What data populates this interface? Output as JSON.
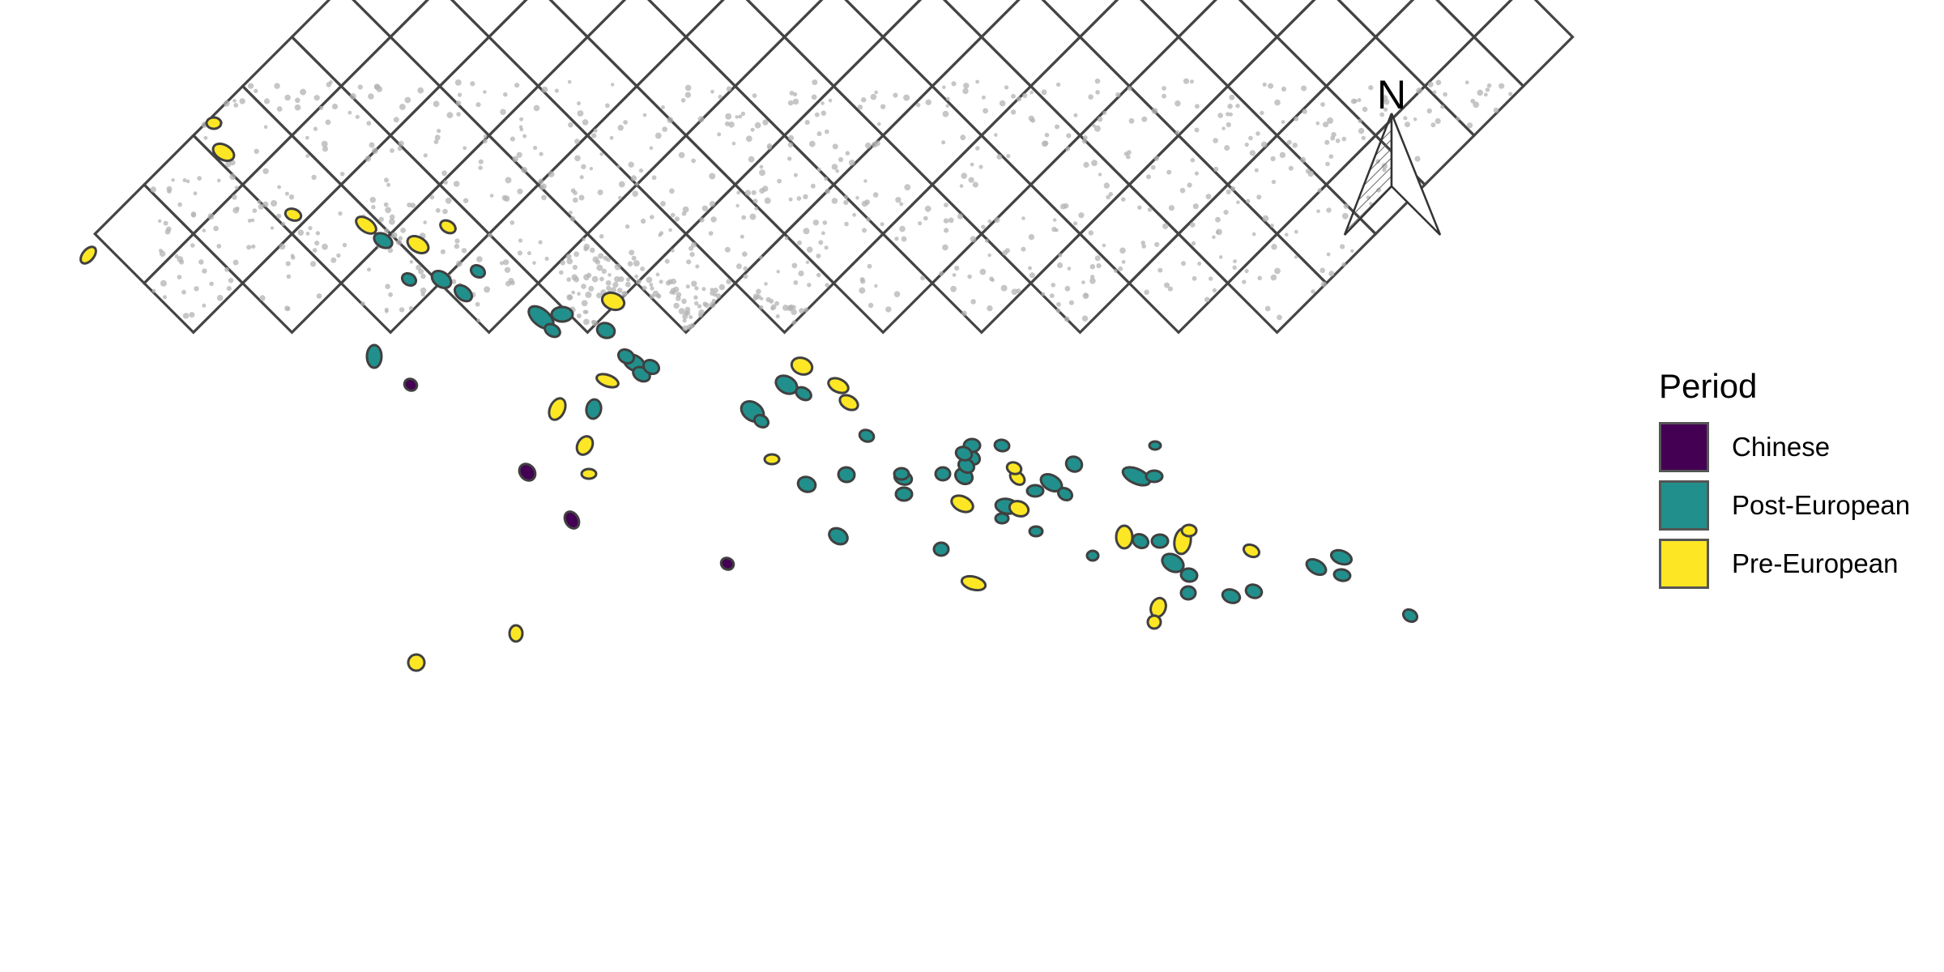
{
  "legend": {
    "title": "Period",
    "items": [
      {
        "label": "Chinese",
        "color": "#440154"
      },
      {
        "label": "Post-European",
        "color": "#21908C"
      },
      {
        "label": "Pre-European",
        "color": "#FDE725"
      }
    ]
  },
  "north_arrow": {
    "label": "N"
  },
  "colors": {
    "grid_stroke": "#444444",
    "points": "#b3b3b3",
    "polygon_stroke": "#404040"
  }
}
